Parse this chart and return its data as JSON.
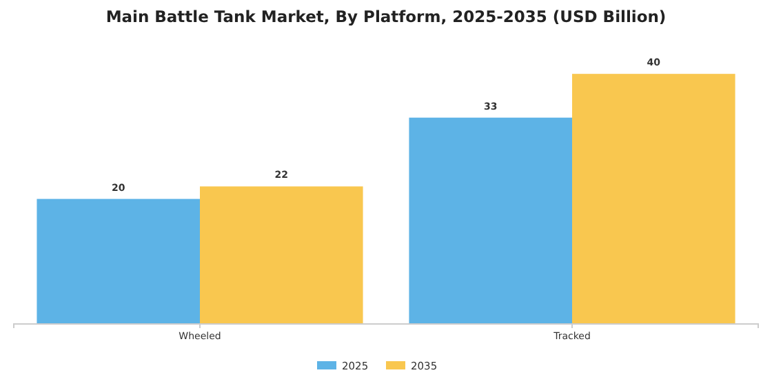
{
  "chart_data": {
    "type": "bar",
    "title": "Main Battle Tank Market, By Platform, 2025-2035 (USD Billion)",
    "categories": [
      "Wheeled",
      "Tracked"
    ],
    "series": [
      {
        "name": "2025",
        "color": "#5db3e6",
        "values": [
          20,
          33
        ]
      },
      {
        "name": "2035",
        "color": "#f9c74f",
        "values": [
          22,
          40
        ]
      }
    ],
    "data_labels": true,
    "legend": "bottom"
  }
}
